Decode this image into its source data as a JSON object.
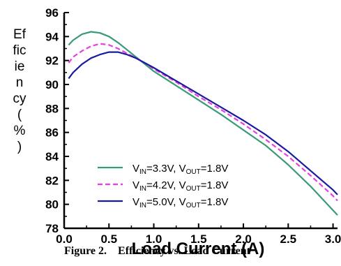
{
  "chart_data": {
    "type": "line",
    "ylabel": "Efficiency (%)",
    "ylabel_lines": [
      "Ef",
      "fic",
      "ie",
      "n",
      "cy",
      "(",
      "%",
      ")"
    ],
    "xlabel": "Load Current (A)",
    "xlim": [
      0,
      3.05
    ],
    "ylim": [
      78,
      96
    ],
    "xticks": [
      "0.0",
      "0.5",
      "1.0",
      "1.5",
      "2.0",
      "2.5",
      "3.0"
    ],
    "yticks": [
      "78",
      "80",
      "82",
      "84",
      "86",
      "88",
      "90",
      "92",
      "94",
      "96"
    ],
    "grid": false,
    "legend_position": "bottom-left",
    "series": [
      {
        "label_parts": [
          "V",
          "IN",
          "=3.3V,  V",
          "OUT",
          "=1.8V"
        ],
        "color": "#3a9a78",
        "dash": "solid",
        "x": [
          0.05,
          0.1,
          0.2,
          0.3,
          0.4,
          0.5,
          0.6,
          0.7,
          0.8,
          0.9,
          1.0,
          1.25,
          1.5,
          1.75,
          2.0,
          2.25,
          2.5,
          2.75,
          3.0,
          3.05
        ],
        "y": [
          93.3,
          93.7,
          94.2,
          94.4,
          94.3,
          94.0,
          93.5,
          92.9,
          92.3,
          91.7,
          91.1,
          89.9,
          88.7,
          87.5,
          86.2,
          84.9,
          83.3,
          81.5,
          79.5,
          79.1
        ]
      },
      {
        "label_parts": [
          "V",
          "IN",
          "=4.2V,  V",
          "OUT",
          "=1.8V"
        ],
        "color": "#e83ee0",
        "dash": "dashed",
        "x": [
          0.05,
          0.1,
          0.2,
          0.3,
          0.4,
          0.5,
          0.6,
          0.7,
          0.8,
          0.9,
          1.0,
          1.25,
          1.5,
          1.75,
          2.0,
          2.25,
          2.5,
          2.75,
          3.0,
          3.05
        ],
        "y": [
          91.8,
          92.3,
          92.8,
          93.2,
          93.4,
          93.3,
          93.0,
          92.6,
          92.2,
          91.8,
          91.3,
          90.2,
          89.0,
          87.9,
          86.7,
          85.4,
          84.0,
          82.4,
          80.7,
          80.3
        ]
      },
      {
        "label_parts": [
          "V",
          "IN",
          "=5.0V,  V",
          "OUT",
          "=1.8V"
        ],
        "color": "#1a1aa0",
        "dash": "solid",
        "x": [
          0.05,
          0.1,
          0.2,
          0.3,
          0.4,
          0.5,
          0.6,
          0.7,
          0.8,
          0.9,
          1.0,
          1.25,
          1.5,
          1.75,
          2.0,
          2.25,
          2.5,
          2.75,
          3.0,
          3.05
        ],
        "y": [
          90.5,
          91.0,
          91.7,
          92.2,
          92.5,
          92.7,
          92.7,
          92.5,
          92.2,
          91.8,
          91.4,
          90.3,
          89.2,
          88.1,
          87.0,
          85.8,
          84.4,
          82.8,
          81.2,
          80.8
        ]
      }
    ]
  },
  "caption": {
    "number": "Figure 2.",
    "text": "Efficiency vs. Load Current"
  }
}
